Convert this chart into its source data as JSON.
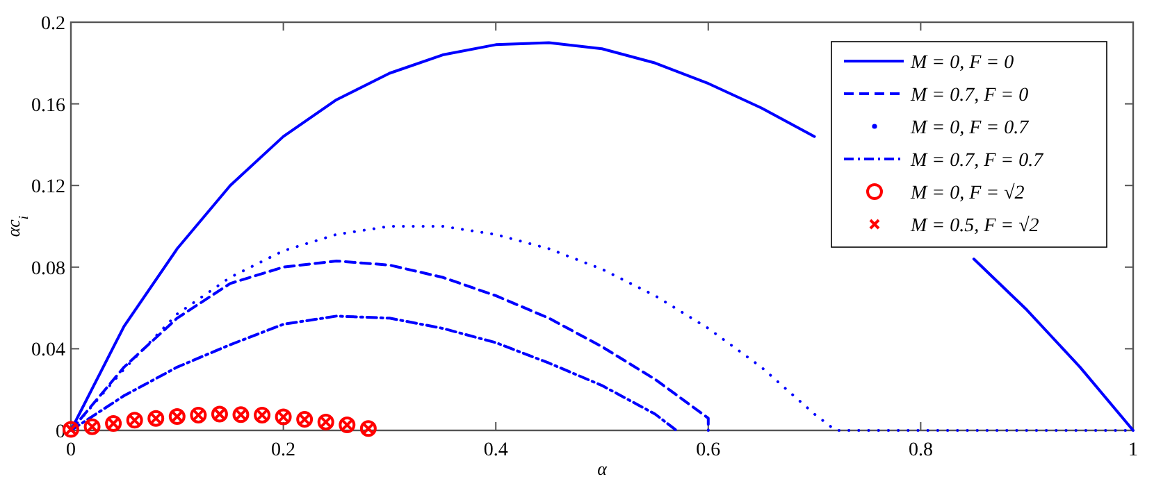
{
  "chart_data": {
    "type": "line",
    "xlabel": "α",
    "ylabel": "αc$_{i}$",
    "xlim": [
      0,
      1
    ],
    "ylim": [
      0,
      0.2
    ],
    "xticks": [
      0,
      0.2,
      0.4,
      0.6,
      0.8,
      1
    ],
    "yticks": [
      0,
      0.04,
      0.08,
      0.12,
      0.16,
      0.2
    ],
    "grid": false,
    "legend": "top right",
    "series": [
      {
        "name": "M = 0, F = 0",
        "color": "#0000ff",
        "line_style": "solid",
        "x": [
          0,
          0.05,
          0.1,
          0.15,
          0.2,
          0.25,
          0.3,
          0.35,
          0.4,
          0.45,
          0.5,
          0.55,
          0.6,
          0.65,
          0.7,
          0.75,
          0.8,
          0.85,
          0.9,
          0.95,
          1
        ],
        "values": [
          0,
          0.051,
          0.089,
          0.12,
          0.144,
          0.162,
          0.175,
          0.184,
          0.189,
          0.19,
          0.187,
          0.18,
          0.17,
          0.158,
          0.144,
          null,
          null,
          0.084,
          0.059,
          0.031,
          0
        ]
      },
      {
        "name": "M = 0.7, F = 0",
        "color": "#0000ff",
        "line_style": "dashed",
        "x": [
          0,
          0.05,
          0.1,
          0.15,
          0.2,
          0.25,
          0.3,
          0.35,
          0.4,
          0.45,
          0.5,
          0.55,
          0.6,
          0.6
        ],
        "values": [
          0,
          0.031,
          0.055,
          0.072,
          0.08,
          0.083,
          0.081,
          0.075,
          0.066,
          0.055,
          0.041,
          0.025,
          0.006,
          0
        ]
      },
      {
        "name": "M = 0, F = 0.7",
        "color": "#0000ff",
        "line_style": "dotted",
        "x": [
          0,
          0.05,
          0.1,
          0.15,
          0.2,
          0.25,
          0.3,
          0.35,
          0.4,
          0.45,
          0.5,
          0.55,
          0.6,
          0.65,
          0.7,
          0.72,
          1
        ],
        "values": [
          0,
          0.03,
          0.057,
          0.075,
          0.088,
          0.096,
          0.1,
          0.1,
          0.096,
          0.089,
          0.079,
          0.066,
          0.05,
          0.031,
          0.008,
          0,
          0
        ]
      },
      {
        "name": "M = 0.7, F = 0.7",
        "color": "#0000ff",
        "line_style": "dashdot",
        "x": [
          0,
          0.05,
          0.1,
          0.15,
          0.2,
          0.25,
          0.3,
          0.35,
          0.4,
          0.45,
          0.5,
          0.55,
          0.57
        ],
        "values": [
          0,
          0.017,
          0.031,
          0.042,
          0.052,
          0.056,
          0.055,
          0.05,
          0.043,
          0.033,
          0.022,
          0.008,
          0
        ]
      },
      {
        "name": "M = 0, F = √2",
        "type": "scatter",
        "marker": "circle",
        "color": "#ff0000",
        "x": [
          0,
          0.02,
          0.04,
          0.06,
          0.08,
          0.1,
          0.12,
          0.14,
          0.16,
          0.18,
          0.2,
          0.22,
          0.24,
          0.26,
          0.28
        ],
        "values": [
          0.0005,
          0.0018,
          0.0034,
          0.005,
          0.0059,
          0.0068,
          0.0075,
          0.008,
          0.0077,
          0.0075,
          0.0066,
          0.0054,
          0.0041,
          0.0027,
          0.0009
        ]
      },
      {
        "name": "M = 0.5, F = √2",
        "type": "scatter",
        "marker": "cross",
        "color": "#ff0000",
        "x": [
          0,
          0.02,
          0.04,
          0.06,
          0.08,
          0.1,
          0.12,
          0.14,
          0.16,
          0.18,
          0.2,
          0.22,
          0.24,
          0.26,
          0.28
        ],
        "values": [
          0.0005,
          0.0018,
          0.0034,
          0.005,
          0.0059,
          0.0068,
          0.0075,
          0.008,
          0.0077,
          0.0075,
          0.0066,
          0.0054,
          0.0041,
          0.0027,
          0.0009
        ]
      }
    ]
  }
}
